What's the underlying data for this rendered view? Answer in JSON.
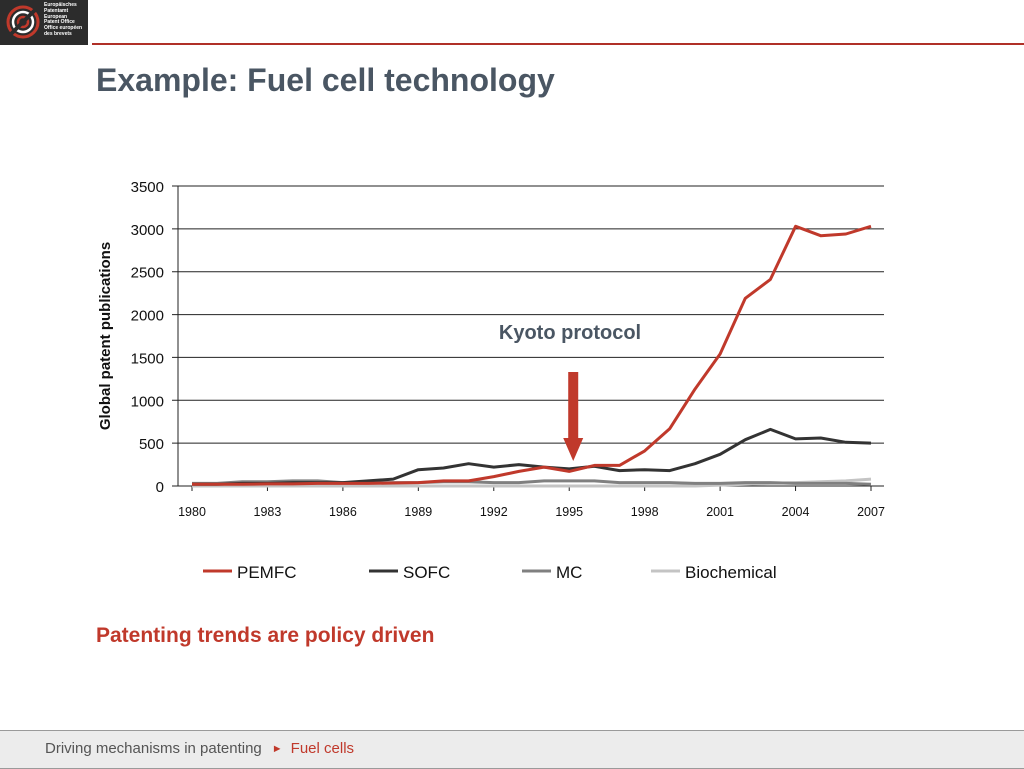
{
  "header": {
    "logo_lines": [
      "Europäisches",
      "Patentamt",
      "European",
      "Patent Office",
      "Office européen",
      "des brevets"
    ]
  },
  "slide": {
    "title": "Example: Fuel cell technology",
    "subtitle": "Patenting trends are policy driven"
  },
  "footer": {
    "crumb": "Driving mechanisms in patenting",
    "current": "Fuel cells"
  },
  "colors": {
    "accent": "#c0392b",
    "title": "#4a5663"
  },
  "chart_data": {
    "type": "line",
    "title": "",
    "xlabel": "",
    "ylabel": "Global patent publications",
    "xlim": [
      1980,
      2007
    ],
    "ylim": [
      0,
      3500
    ],
    "yticks": [
      0,
      500,
      1000,
      1500,
      2000,
      2500,
      3000,
      3500
    ],
    "xticks": [
      1980,
      1983,
      1986,
      1989,
      1992,
      1995,
      1998,
      2001,
      2004,
      2007
    ],
    "grid": "horizontal",
    "legend_position": "bottom",
    "x": [
      1980,
      1981,
      1982,
      1983,
      1984,
      1985,
      1986,
      1987,
      1988,
      1989,
      1990,
      1991,
      1992,
      1993,
      1994,
      1995,
      1996,
      1997,
      1998,
      1999,
      2000,
      2001,
      2002,
      2003,
      2004,
      2005,
      2006,
      2007
    ],
    "series": [
      {
        "name": "PEMFC",
        "color": "#c0392b",
        "width": 3,
        "values": [
          20,
          20,
          20,
          25,
          25,
          30,
          30,
          30,
          35,
          40,
          60,
          60,
          110,
          170,
          220,
          170,
          240,
          240,
          410,
          670,
          1130,
          1540,
          2190,
          2410,
          3030,
          2920,
          2940,
          3030
        ]
      },
      {
        "name": "SOFC",
        "color": "#333333",
        "width": 3,
        "values": [
          20,
          20,
          30,
          30,
          40,
          40,
          40,
          60,
          80,
          190,
          210,
          260,
          220,
          250,
          220,
          200,
          230,
          180,
          190,
          180,
          260,
          370,
          540,
          660,
          550,
          560,
          510,
          500
        ]
      },
      {
        "name": "MC",
        "color": "#808080",
        "width": 3,
        "values": [
          30,
          30,
          50,
          50,
          60,
          60,
          40,
          40,
          40,
          40,
          50,
          50,
          40,
          40,
          60,
          60,
          60,
          40,
          40,
          40,
          30,
          30,
          40,
          40,
          30,
          30,
          30,
          20
        ]
      },
      {
        "name": "Biochemical",
        "color": "#c4c4c4",
        "width": 3,
        "values": [
          0,
          0,
          0,
          0,
          0,
          0,
          0,
          0,
          0,
          0,
          0,
          0,
          0,
          0,
          0,
          0,
          0,
          0,
          0,
          0,
          0,
          10,
          20,
          30,
          40,
          50,
          60,
          80
        ]
      }
    ],
    "annotations": [
      {
        "text": "Kyoto protocol",
        "year": 1995,
        "arrow": true,
        "color": "#c0392b",
        "text_color": "#4a5663"
      }
    ]
  }
}
